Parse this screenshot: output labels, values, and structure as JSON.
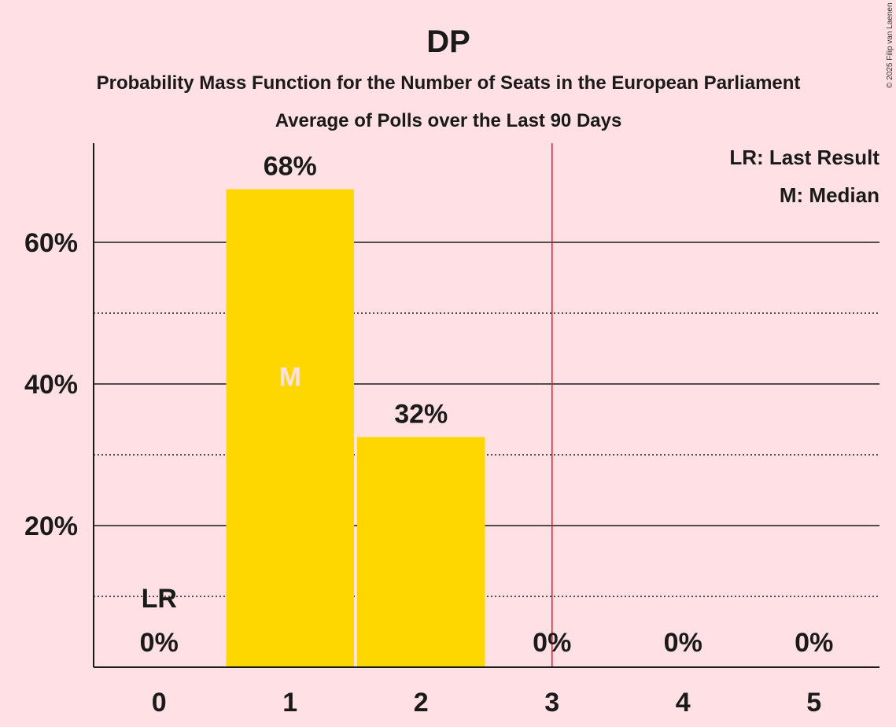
{
  "title": "DP",
  "subtitle": "Probability Mass Function for the Number of Seats in the European Parliament",
  "subtitle2": "Average of Polls over the Last 90 Days",
  "copyright": "© 2025 Filip van Laenen",
  "legend": {
    "last_result": "LR: Last Result",
    "median": "M: Median"
  },
  "colors": {
    "background": "#FFE0E4",
    "bar": "#FFD700",
    "last_result_line": "#E8202A",
    "axis": "#1a1a1a",
    "median_marker": "#FFE0E4"
  },
  "chart_data": {
    "type": "bar",
    "categories": [
      "0",
      "1",
      "2",
      "3",
      "4",
      "5"
    ],
    "values": [
      0,
      67.5,
      32.5,
      0,
      0,
      0
    ],
    "value_labels": [
      "0%",
      "68%",
      "32%",
      "0%",
      "0%",
      "0%"
    ],
    "ylim": [
      0,
      74
    ],
    "yticks": [
      20,
      40,
      60
    ],
    "ytick_labels": [
      "20%",
      "40%",
      "60%"
    ],
    "minor_gridlines": [
      10,
      30,
      50
    ],
    "median_category": "1",
    "median_label": "M",
    "last_result_category": "0",
    "last_result_label": "LR",
    "last_result_line_at": 3.5,
    "grid": true,
    "legend_position": "top-right"
  }
}
